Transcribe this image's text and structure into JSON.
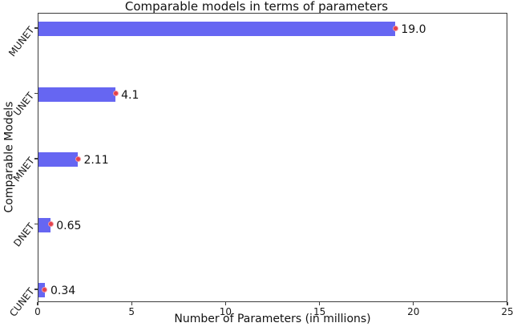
{
  "figure": {
    "background": "#ffffff"
  },
  "chart_data": {
    "type": "bar",
    "orientation": "horizontal",
    "title": "Comparable models in terms of parameters",
    "xlabel": "Number of Parameters (in millions)",
    "ylabel": "Comparable Models",
    "categories": [
      "MUNET",
      "UNET",
      "MNET",
      "DNET",
      "CUNET"
    ],
    "values": [
      19.0,
      4.1,
      2.11,
      0.65,
      0.34
    ],
    "value_labels": [
      "19.0",
      "4.1",
      "2.11",
      "0.65",
      "0.34"
    ],
    "xlim": [
      0,
      25
    ],
    "xticks": {
      "values": [
        0,
        5,
        10,
        15,
        20,
        25
      ],
      "labels": [
        "0",
        "5",
        "10",
        "15",
        "20",
        "25"
      ]
    },
    "grid": false,
    "legend": null,
    "has_error_markers": true,
    "colors": {
      "bar": "#6666f2",
      "error_marker_fill": "#e4414b",
      "error_marker_edge": "#f59aa0",
      "axis": "#3c3c3c",
      "text": "#1a1a1a"
    }
  }
}
